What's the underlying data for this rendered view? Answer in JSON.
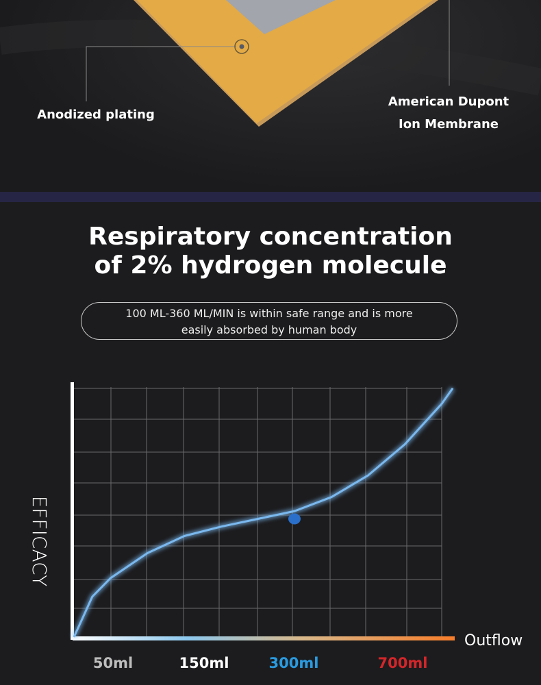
{
  "callouts": {
    "left": "Anodized plating",
    "right_line1": "American Dupont",
    "right_line2": "Ion Membrane"
  },
  "heading": {
    "line1": "Respiratory concentration",
    "line2": "of 2% hydrogen molecule"
  },
  "note": {
    "line1": "100 ML-360 ML/MIN is within safe range and is more",
    "line2": "easily absorbed by human body"
  },
  "colors": {
    "gold": "#e4aa45",
    "strip": "#262545",
    "curve": "#7ab8ee",
    "highlight": "#2a6fc9",
    "tick_50": "#bdbdbd",
    "tick_150": "#ffffff",
    "tick_300": "#2a9be0",
    "tick_700": "#d4262a"
  },
  "chart_data": {
    "type": "line",
    "xlabel": "Outflow",
    "ylabel": "EFFICACY",
    "tick_labels": [
      "50ml",
      "150ml",
      "300ml",
      "700ml"
    ],
    "grid": true,
    "highlight": {
      "label": "300ml",
      "efficacy": 3.8
    },
    "series": [
      {
        "x": [
          0,
          0.5,
          1,
          2,
          3,
          4,
          5,
          6,
          7,
          8,
          9,
          10,
          10.3
        ],
        "efficacy": [
          0,
          1.3,
          1.9,
          2.7,
          3.25,
          3.55,
          3.8,
          4.05,
          4.5,
          5.2,
          6.2,
          7.5,
          8.0
        ]
      }
    ]
  }
}
